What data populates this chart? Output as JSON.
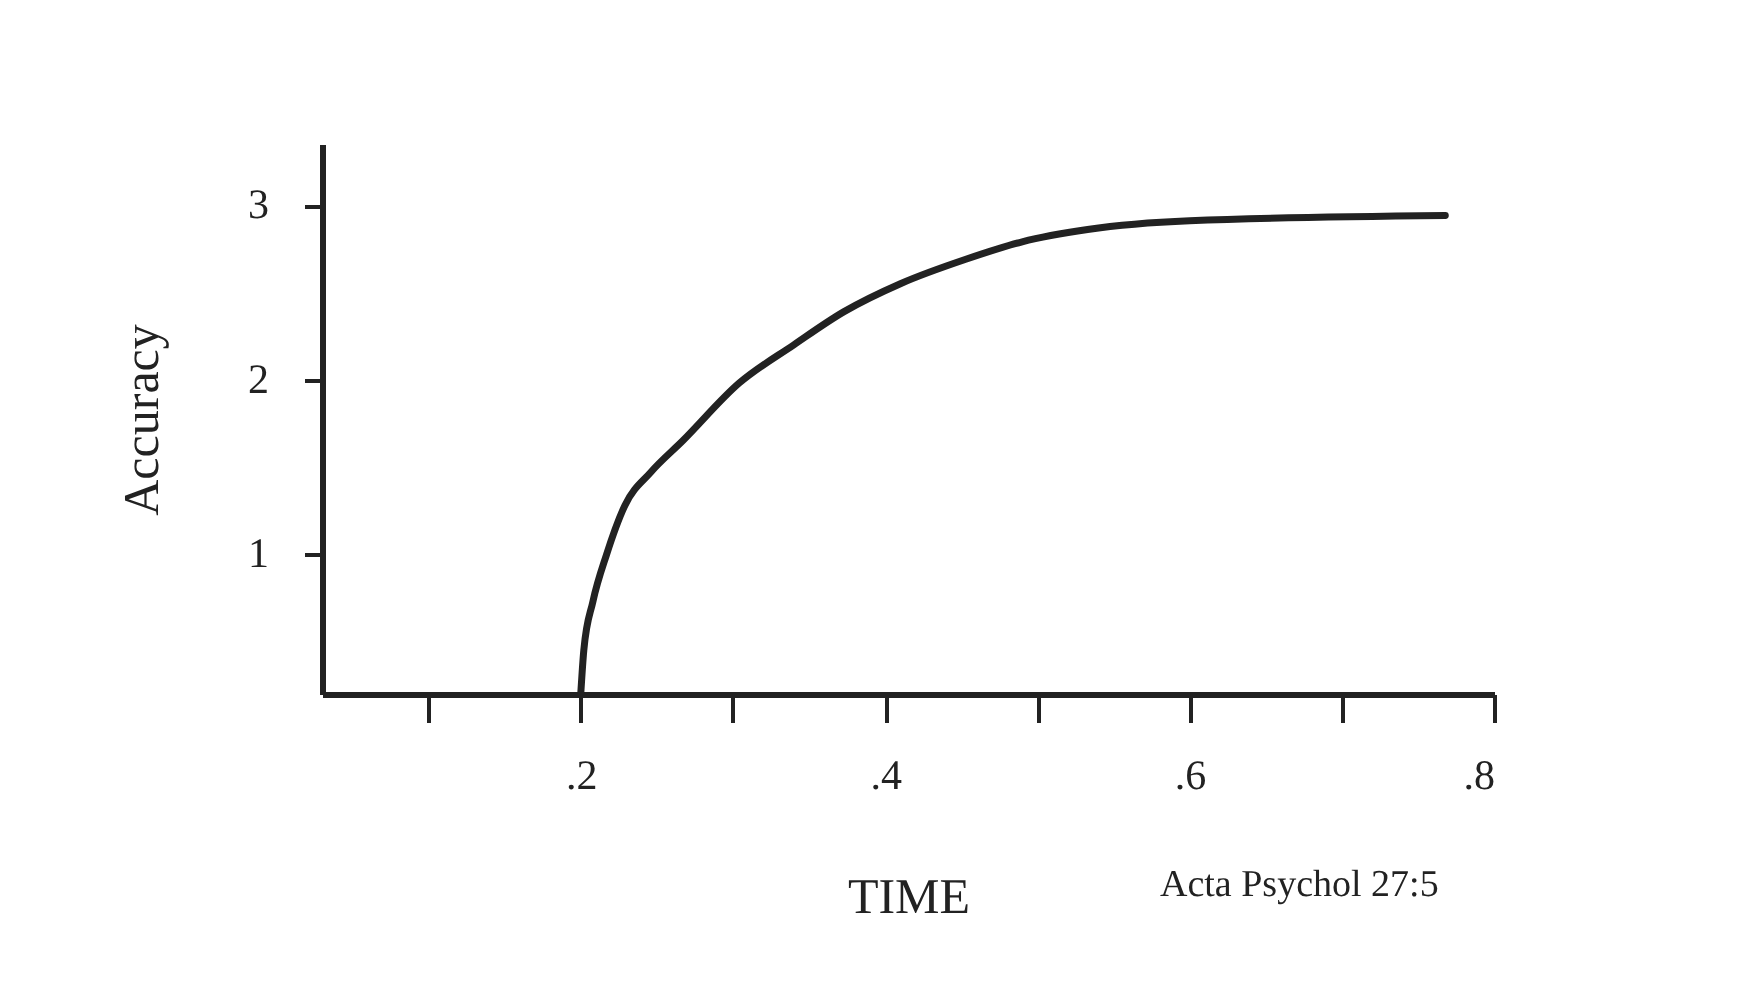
{
  "chart_data": {
    "type": "line",
    "xlabel": "TIME",
    "ylabel": "Accuracy",
    "x": [
      0.2,
      0.202,
      0.208,
      0.217,
      0.229,
      0.246,
      0.267,
      0.304,
      0.34,
      0.373,
      0.41,
      0.453,
      0.49,
      0.533,
      0.6,
      0.768
    ],
    "series": [
      {
        "color": "#222222",
        "values": [
          0.2,
          0.45,
          0.73,
          1.0,
          1.28,
          1.47,
          1.65,
          1.98,
          2.2,
          2.39,
          2.55,
          2.69,
          2.79,
          2.86,
          2.91,
          2.94
        ]
      }
    ],
    "xlim": [
      0.03,
      0.8
    ],
    "ylim": [
      0.2,
      3.35
    ],
    "xticks": [
      {
        "value": 0.1,
        "label": null
      },
      {
        "value": 0.2,
        "label": ".2"
      },
      {
        "value": 0.3,
        "label": null
      },
      {
        "value": 0.4,
        "label": ".4"
      },
      {
        "value": 0.5,
        "label": null
      },
      {
        "value": 0.6,
        "label": ".6"
      },
      {
        "value": 0.7,
        "label": null
      },
      {
        "value": 0.8,
        "label": ".8"
      }
    ],
    "yticks": [
      1,
      2,
      3
    ],
    "grid": false,
    "marker": "none",
    "line_style": "solid",
    "annotations": [
      "Acta Psychol 27:5"
    ]
  }
}
